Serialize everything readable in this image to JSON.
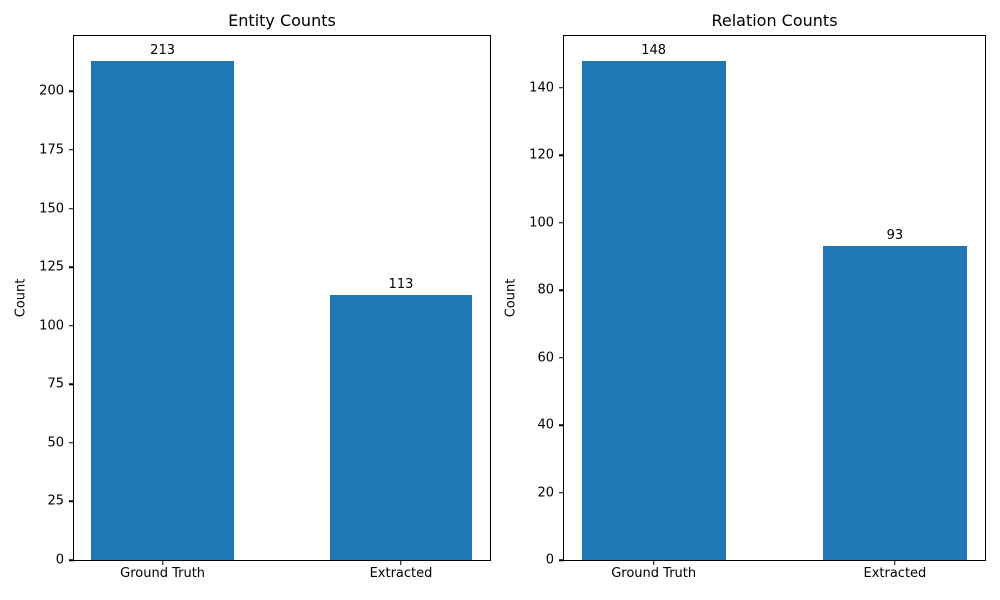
{
  "figure": {
    "background": "#ffffff",
    "bar_color": "#1f77b4",
    "axis_color": "#000000",
    "text_color": "#000000"
  },
  "chart_data": [
    {
      "type": "bar",
      "title": "Entity Counts",
      "xlabel": "",
      "ylabel": "Count",
      "categories": [
        "Ground Truth",
        "Extracted"
      ],
      "values": [
        213,
        113
      ],
      "bar_labels": [
        "213",
        "113"
      ],
      "yticks": [
        0,
        25,
        50,
        75,
        100,
        125,
        150,
        175,
        200
      ],
      "ylim": [
        0,
        223.65
      ],
      "grid": false,
      "legend_position": "none",
      "bar_color": "#1f77b4"
    },
    {
      "type": "bar",
      "title": "Relation Counts",
      "xlabel": "",
      "ylabel": "Count",
      "categories": [
        "Ground Truth",
        "Extracted"
      ],
      "values": [
        148,
        93
      ],
      "bar_labels": [
        "148",
        "93"
      ],
      "yticks": [
        0,
        20,
        40,
        60,
        80,
        100,
        120,
        140
      ],
      "ylim": [
        0,
        155.4
      ],
      "grid": false,
      "legend_position": "none",
      "bar_color": "#1f77b4"
    }
  ]
}
